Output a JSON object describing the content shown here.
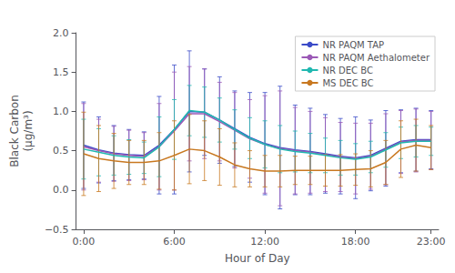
{
  "chart_data": {
    "type": "line",
    "xlabel": "Hour of Day",
    "ylabel": "Black Carbon\n(μg/m³)",
    "x": [
      0,
      1,
      2,
      3,
      4,
      5,
      6,
      7,
      8,
      9,
      10,
      11,
      12,
      13,
      14,
      15,
      16,
      17,
      18,
      19,
      20,
      21,
      22,
      23
    ],
    "series": [
      {
        "name": "NR PAQM TAP",
        "color": "#3B4BC8",
        "values": [
          0.57,
          0.51,
          0.47,
          0.45,
          0.44,
          0.57,
          0.77,
          1.0,
          0.99,
          0.89,
          0.78,
          0.67,
          0.59,
          0.54,
          0.51,
          0.49,
          0.46,
          0.43,
          0.41,
          0.44,
          0.53,
          0.62,
          0.64,
          0.64
        ],
        "errors": [
          0.55,
          0.42,
          0.35,
          0.32,
          0.3,
          0.62,
          0.82,
          0.77,
          0.55,
          0.55,
          0.48,
          0.57,
          0.65,
          0.78,
          0.57,
          0.55,
          0.5,
          0.48,
          0.52,
          0.45,
          0.48,
          0.4,
          0.4,
          0.37
        ]
      },
      {
        "name": "NR PAQM Aethalometer",
        "color": "#9B59B6",
        "values": [
          0.55,
          0.5,
          0.46,
          0.44,
          0.43,
          0.55,
          0.75,
          0.97,
          0.97,
          0.87,
          0.76,
          0.65,
          0.58,
          0.53,
          0.5,
          0.48,
          0.45,
          0.42,
          0.4,
          0.43,
          0.52,
          0.61,
          0.63,
          0.63
        ],
        "errors": [
          0.55,
          0.4,
          0.35,
          0.32,
          0.3,
          0.55,
          0.75,
          0.6,
          0.57,
          0.5,
          0.48,
          0.5,
          0.62,
          0.73,
          0.55,
          0.52,
          0.47,
          0.44,
          0.45,
          0.42,
          0.45,
          0.4,
          0.4,
          0.37
        ]
      },
      {
        "name": "NR DEC BC",
        "color": "#20B8B0",
        "values": [
          0.52,
          0.48,
          0.44,
          0.42,
          0.41,
          0.55,
          0.77,
          1.01,
          0.99,
          0.89,
          0.77,
          0.66,
          0.58,
          0.52,
          0.49,
          0.47,
          0.44,
          0.41,
          0.39,
          0.42,
          0.51,
          0.6,
          0.62,
          0.62
        ],
        "errors": [
          0.38,
          0.3,
          0.25,
          0.22,
          0.2,
          0.38,
          0.38,
          0.32,
          0.32,
          0.28,
          0.25,
          0.26,
          0.3,
          0.3,
          0.26,
          0.25,
          0.22,
          0.22,
          0.2,
          0.2,
          0.22,
          0.2,
          0.2,
          0.18
        ]
      },
      {
        "name": "MS DEC BC",
        "color": "#C87820",
        "values": [
          0.46,
          0.4,
          0.37,
          0.35,
          0.35,
          0.37,
          0.44,
          0.52,
          0.5,
          0.42,
          0.32,
          0.27,
          0.24,
          0.24,
          0.25,
          0.25,
          0.25,
          0.25,
          0.26,
          0.27,
          0.35,
          0.52,
          0.57,
          0.54
        ],
        "errors": [
          0.53,
          0.42,
          0.35,
          0.28,
          0.28,
          0.36,
          0.44,
          0.44,
          0.38,
          0.36,
          0.28,
          0.23,
          0.2,
          0.2,
          0.18,
          0.18,
          0.2,
          0.2,
          0.2,
          0.23,
          0.28,
          0.36,
          0.33,
          0.28
        ]
      }
    ],
    "xlim": [
      -0.5,
      23.5
    ],
    "xticks": [
      {
        "value": 0,
        "label": "0:00"
      },
      {
        "value": 6,
        "label": "6:00"
      },
      {
        "value": 12,
        "label": "12:00"
      },
      {
        "value": 18,
        "label": "18:00"
      },
      {
        "value": 23,
        "label": "23:00"
      }
    ],
    "ylim": [
      -0.5,
      2.0
    ],
    "yticks": [
      {
        "value": -0.5,
        "label": "−0.5"
      },
      {
        "value": 0.0,
        "label": "0.0"
      },
      {
        "value": 0.5,
        "label": "0.5"
      },
      {
        "value": 1.0,
        "label": "1.0"
      },
      {
        "value": 1.5,
        "label": "1.5"
      },
      {
        "value": 2.0,
        "label": "2.0"
      }
    ],
    "grid": false,
    "legend": "upper right"
  }
}
